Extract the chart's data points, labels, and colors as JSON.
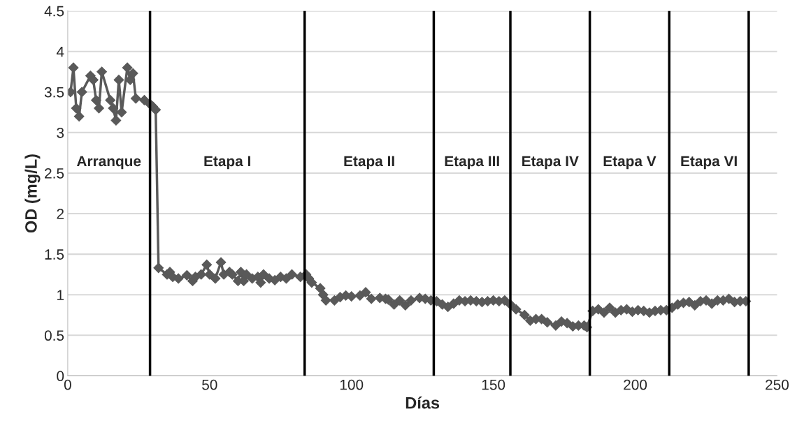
{
  "chart_data": {
    "type": "line",
    "xlabel": "Días",
    "ylabel": "OD (mg/L)",
    "xlim": [
      0,
      250
    ],
    "xticks": [
      0,
      50,
      100,
      150,
      200,
      250
    ],
    "ylim": [
      0,
      4.5
    ],
    "yticks": [
      0,
      0.5,
      1,
      1.5,
      2,
      2.5,
      3,
      3.5,
      4,
      4.5
    ],
    "grid": "y",
    "marker": "diamond",
    "line_style": "solid",
    "series": [
      {
        "color": "#595959",
        "x": [
          1,
          2,
          3,
          4,
          5,
          8,
          9,
          10,
          11,
          12,
          15,
          16,
          17,
          18,
          19,
          21,
          22,
          23,
          24,
          27,
          29,
          30,
          31,
          32,
          35,
          36,
          37,
          39,
          42,
          44,
          45,
          47,
          49,
          50,
          52,
          54,
          55,
          57,
          58,
          60,
          61,
          62,
          63,
          65,
          67,
          68,
          69,
          71,
          73,
          75,
          77,
          79,
          82,
          84,
          85,
          86,
          89,
          90,
          91,
          94,
          96,
          98,
          100,
          103,
          105,
          107,
          110,
          112,
          113,
          115,
          117,
          119,
          121,
          124,
          126,
          128,
          130,
          132,
          134,
          136,
          138,
          140,
          142,
          144,
          146,
          148,
          150,
          152,
          154,
          156,
          158,
          161,
          163,
          165,
          167,
          169,
          172,
          174,
          176,
          178,
          180,
          182,
          183,
          185,
          187,
          189,
          191,
          193,
          195,
          197,
          199,
          201,
          203,
          205,
          207,
          209,
          211,
          213,
          215,
          217,
          219,
          221,
          223,
          225,
          227,
          229,
          231,
          233,
          235,
          237,
          239
        ],
        "values": [
          3.5,
          3.8,
          3.3,
          3.2,
          3.5,
          3.7,
          3.65,
          3.4,
          3.3,
          3.75,
          3.4,
          3.3,
          3.15,
          3.65,
          3.25,
          3.8,
          3.65,
          3.73,
          3.42,
          3.4,
          3.35,
          3.32,
          3.28,
          1.33,
          1.25,
          1.28,
          1.22,
          1.2,
          1.24,
          1.17,
          1.22,
          1.25,
          1.37,
          1.25,
          1.2,
          1.4,
          1.25,
          1.28,
          1.25,
          1.17,
          1.28,
          1.17,
          1.25,
          1.2,
          1.22,
          1.15,
          1.25,
          1.2,
          1.18,
          1.22,
          1.2,
          1.25,
          1.22,
          1.25,
          1.2,
          1.15,
          1.08,
          1.0,
          0.93,
          0.93,
          0.97,
          0.99,
          0.98,
          0.99,
          1.03,
          0.95,
          0.96,
          0.95,
          0.94,
          0.88,
          0.93,
          0.87,
          0.93,
          0.96,
          0.95,
          0.93,
          0.92,
          0.88,
          0.85,
          0.89,
          0.93,
          0.92,
          0.93,
          0.92,
          0.91,
          0.92,
          0.93,
          0.92,
          0.93,
          0.88,
          0.82,
          0.75,
          0.68,
          0.7,
          0.7,
          0.66,
          0.62,
          0.67,
          0.65,
          0.61,
          0.62,
          0.62,
          0.6,
          0.8,
          0.82,
          0.78,
          0.84,
          0.78,
          0.81,
          0.82,
          0.79,
          0.81,
          0.8,
          0.78,
          0.8,
          0.81,
          0.81,
          0.84,
          0.88,
          0.9,
          0.91,
          0.87,
          0.92,
          0.93,
          0.89,
          0.93,
          0.93,
          0.95,
          0.91,
          0.92,
          0.92
        ]
      }
    ],
    "ref_lines": [
      {
        "axis": "x",
        "value": 29,
        "color": "#000000"
      },
      {
        "axis": "x",
        "value": 83.5,
        "color": "#000000"
      },
      {
        "axis": "x",
        "value": 129,
        "color": "#000000"
      },
      {
        "axis": "x",
        "value": 156,
        "color": "#000000"
      },
      {
        "axis": "x",
        "value": 184,
        "color": "#000000"
      },
      {
        "axis": "x",
        "value": 212,
        "color": "#000000"
      },
      {
        "axis": "x",
        "value": 240,
        "color": "#000000"
      }
    ],
    "annotations": [
      "Arranque",
      "Etapa I",
      "Etapa II",
      "Etapa III",
      "Etapa IV",
      "Etapa V",
      "Etapa VI"
    ]
  }
}
